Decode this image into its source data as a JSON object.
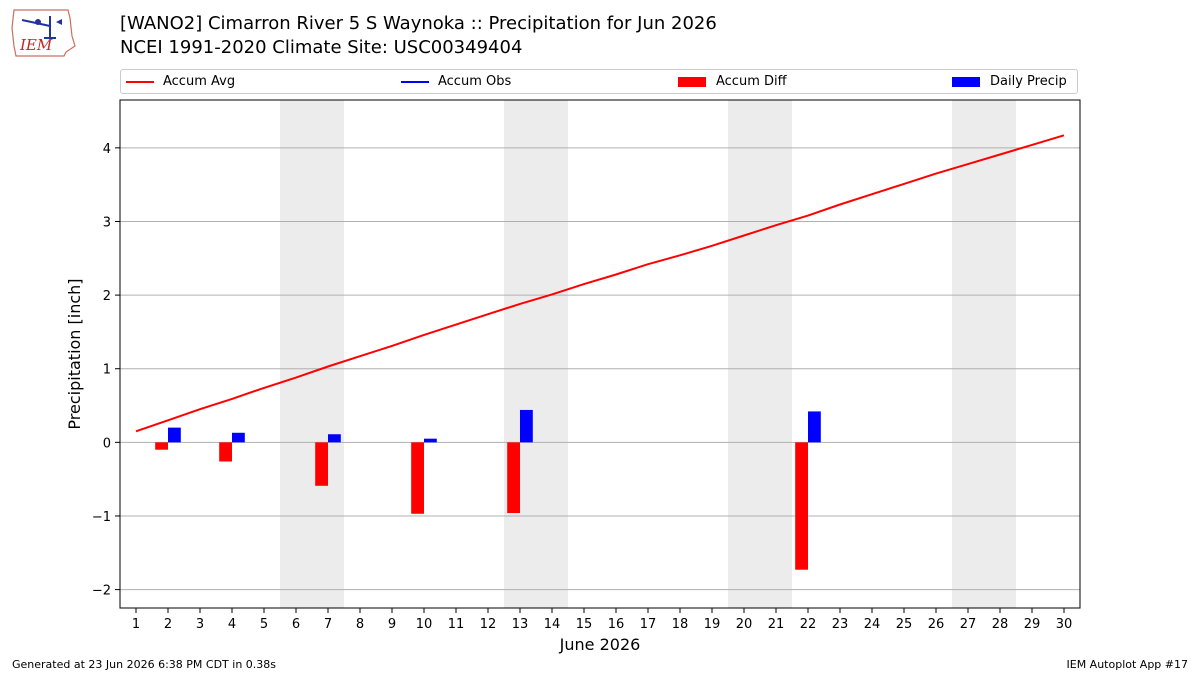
{
  "header": {
    "title_line1": "[WANO2] Cimarron River 5 S Waynoka :: Precipitation for Jun 2026",
    "title_line2": "NCEI 1991-2020 Climate Site: USC00349404"
  },
  "logo": {
    "text": "IEM",
    "icon": "iem-logo-icon"
  },
  "footer": {
    "generated": "Generated at 23 Jun 2026 6:38 PM CDT in 0.38s",
    "app": "IEM Autoplot App #17"
  },
  "colors": {
    "accum_avg": "#ff0000",
    "accum_obs": "#0000ff",
    "accum_diff": "#ff0000",
    "daily_precip": "#0000ff",
    "weekend_band": "#ececec",
    "grid": "#b0b0b0"
  },
  "legend": {
    "placement": "top, above plot",
    "items": [
      {
        "label": "Accum Avg",
        "kind": "line",
        "color": "#ff0000"
      },
      {
        "label": "Accum Obs",
        "kind": "line",
        "color": "#0000ff"
      },
      {
        "label": "Accum Diff",
        "kind": "patch",
        "color": "#ff0000"
      },
      {
        "label": "Daily Precip",
        "kind": "patch",
        "color": "#0000ff"
      }
    ]
  },
  "chart_data": {
    "type": "bar",
    "title": "[WANO2] Cimarron River 5 S Waynoka :: Precipitation for Jun 2026",
    "subtitle": "NCEI 1991-2020 Climate Site: USC00349404",
    "xlabel": "June 2026",
    "ylabel": "Precipitation [inch]",
    "xlim": [
      0.5,
      30.5
    ],
    "ylim": [
      -2.25,
      4.65
    ],
    "yticks": [
      -2,
      -1,
      0,
      1,
      2,
      3,
      4
    ],
    "ytick_labels": [
      "−2",
      "−1",
      "0",
      "1",
      "2",
      "3",
      "4"
    ],
    "x_days": [
      1,
      2,
      3,
      4,
      5,
      6,
      7,
      8,
      9,
      10,
      11,
      12,
      13,
      14,
      15,
      16,
      17,
      18,
      19,
      20,
      21,
      22,
      23,
      24,
      25,
      26,
      27,
      28,
      29,
      30
    ],
    "grid": "horizontal",
    "weekend_bands": [
      [
        6,
        7
      ],
      [
        13,
        14
      ],
      [
        20,
        21
      ],
      [
        27,
        28
      ]
    ],
    "series": [
      {
        "name": "Accum Avg",
        "kind": "line",
        "x": [
          1,
          2,
          3,
          4,
          5,
          6,
          7,
          8,
          9,
          10,
          11,
          12,
          13,
          14,
          15,
          16,
          17,
          18,
          19,
          20,
          21,
          22,
          23,
          24,
          25,
          26,
          27,
          28,
          29,
          30
        ],
        "values": [
          0.15,
          0.3,
          0.45,
          0.59,
          0.74,
          0.88,
          1.03,
          1.17,
          1.31,
          1.46,
          1.6,
          1.74,
          1.88,
          2.01,
          2.15,
          2.28,
          2.42,
          2.54,
          2.67,
          2.81,
          2.95,
          3.08,
          3.23,
          3.37,
          3.51,
          3.65,
          3.78,
          3.91,
          4.04,
          4.17
        ]
      },
      {
        "name": "Accum Diff",
        "kind": "bar",
        "x": [
          2,
          4,
          7,
          10,
          13,
          22
        ],
        "values": [
          -0.1,
          -0.26,
          -0.59,
          -0.97,
          -0.96,
          -1.73
        ]
      },
      {
        "name": "Daily Precip",
        "kind": "bar",
        "x": [
          2,
          4,
          7,
          10,
          13,
          22
        ],
        "values": [
          0.2,
          0.13,
          0.11,
          0.05,
          0.44,
          0.42
        ]
      }
    ]
  }
}
